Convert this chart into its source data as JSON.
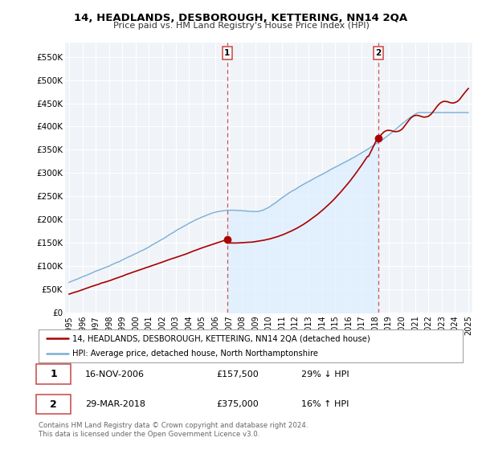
{
  "title": "14, HEADLANDS, DESBOROUGH, KETTERING, NN14 2QA",
  "subtitle": "Price paid vs. HM Land Registry's House Price Index (HPI)",
  "legend_line1": "14, HEADLANDS, DESBOROUGH, KETTERING, NN14 2QA (detached house)",
  "legend_line2": "HPI: Average price, detached house, North Northamptonshire",
  "footnote": "Contains HM Land Registry data © Crown copyright and database right 2024.\nThis data is licensed under the Open Government Licence v3.0.",
  "sale1_date": "16-NOV-2006",
  "sale1_price": "£157,500",
  "sale1_hpi": "29% ↓ HPI",
  "sale2_date": "29-MAR-2018",
  "sale2_price": "£375,000",
  "sale2_hpi": "16% ↑ HPI",
  "sale1_year": 2006.88,
  "sale1_value": 157500,
  "sale2_year": 2018.24,
  "sale2_value": 375000,
  "red_color": "#aa0000",
  "blue_color": "#7aaed6",
  "blue_fill": "#ddeeff",
  "dashed_red": "#cc4444",
  "background_plot": "#f0f4f8",
  "background_fig": "#ffffff",
  "grid_color": "#ffffff",
  "ylim_min": 0,
  "ylim_max": 580000,
  "xlim_min": 1994.7,
  "xlim_max": 2025.3,
  "yticks": [
    0,
    50000,
    100000,
    150000,
    200000,
    250000,
    300000,
    350000,
    400000,
    450000,
    500000,
    550000
  ],
  "ytick_labels": [
    "£0",
    "£50K",
    "£100K",
    "£150K",
    "£200K",
    "£250K",
    "£300K",
    "£350K",
    "£400K",
    "£450K",
    "£500K",
    "£550K"
  ],
  "xticks": [
    1995,
    1996,
    1997,
    1998,
    1999,
    2000,
    2001,
    2002,
    2003,
    2004,
    2005,
    2006,
    2007,
    2008,
    2009,
    2010,
    2011,
    2012,
    2013,
    2014,
    2015,
    2016,
    2017,
    2018,
    2019,
    2020,
    2021,
    2022,
    2023,
    2024,
    2025
  ]
}
